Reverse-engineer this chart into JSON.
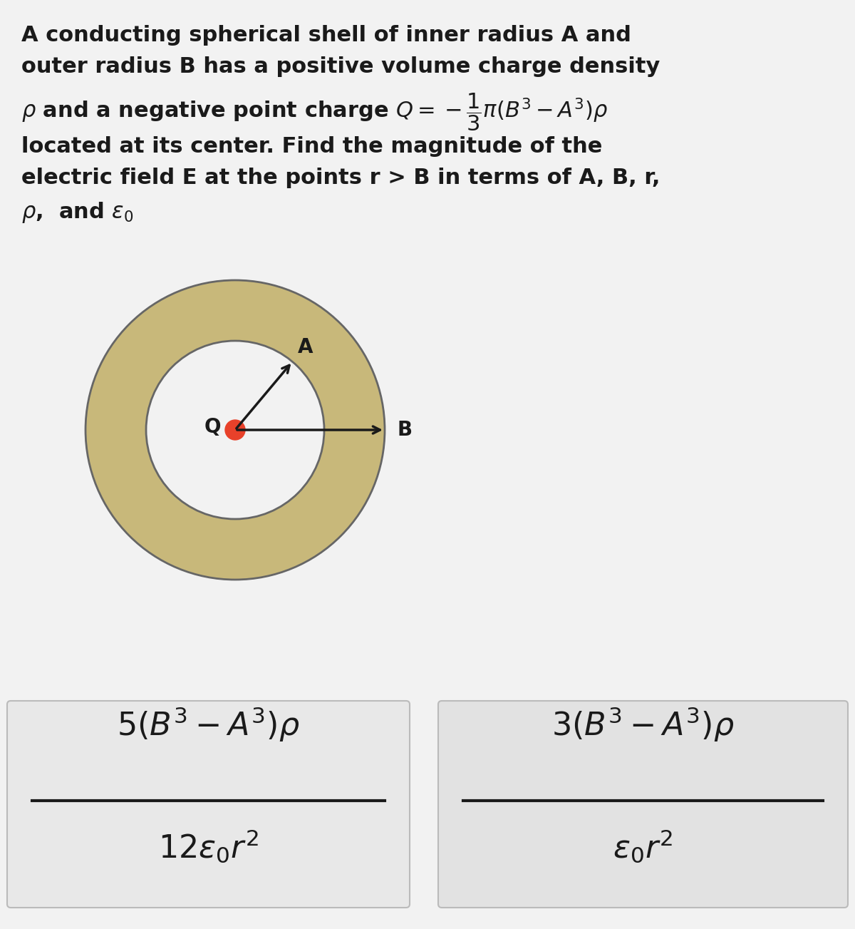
{
  "bg_color": "#f2f2f2",
  "shell_color": "#c8b87a",
  "point_charge_color": "#e8412a",
  "text_color": "#1a1a1a",
  "box1_color": "#e8e8e8",
  "box2_color": "#e2e2e2",
  "box_edge_color": "#bbbbbb",
  "arrow_color": "#1a1a1a",
  "title_lines": [
    "A conducting spherical shell of inner radius A and",
    "outer radius B has a positive volume charge density",
    "$\\rho$ and a negative point charge $Q = -\\dfrac{1}{3}\\pi(B^3 - A^3)\\rho$",
    "located at its center. Find the magnitude of the",
    "electric field E at the points r > B in terms of A, B, r,",
    "$\\rho$,  and $\\varepsilon_0$"
  ],
  "answer1_numerator": "$5(B^3 - A^3)\\rho$",
  "answer1_denominator": "$12\\varepsilon_0 r^2$",
  "answer2_numerator": "$3(B^3 - A^3)\\rho$",
  "answer2_denominator": "$\\varepsilon_0 r^2$"
}
